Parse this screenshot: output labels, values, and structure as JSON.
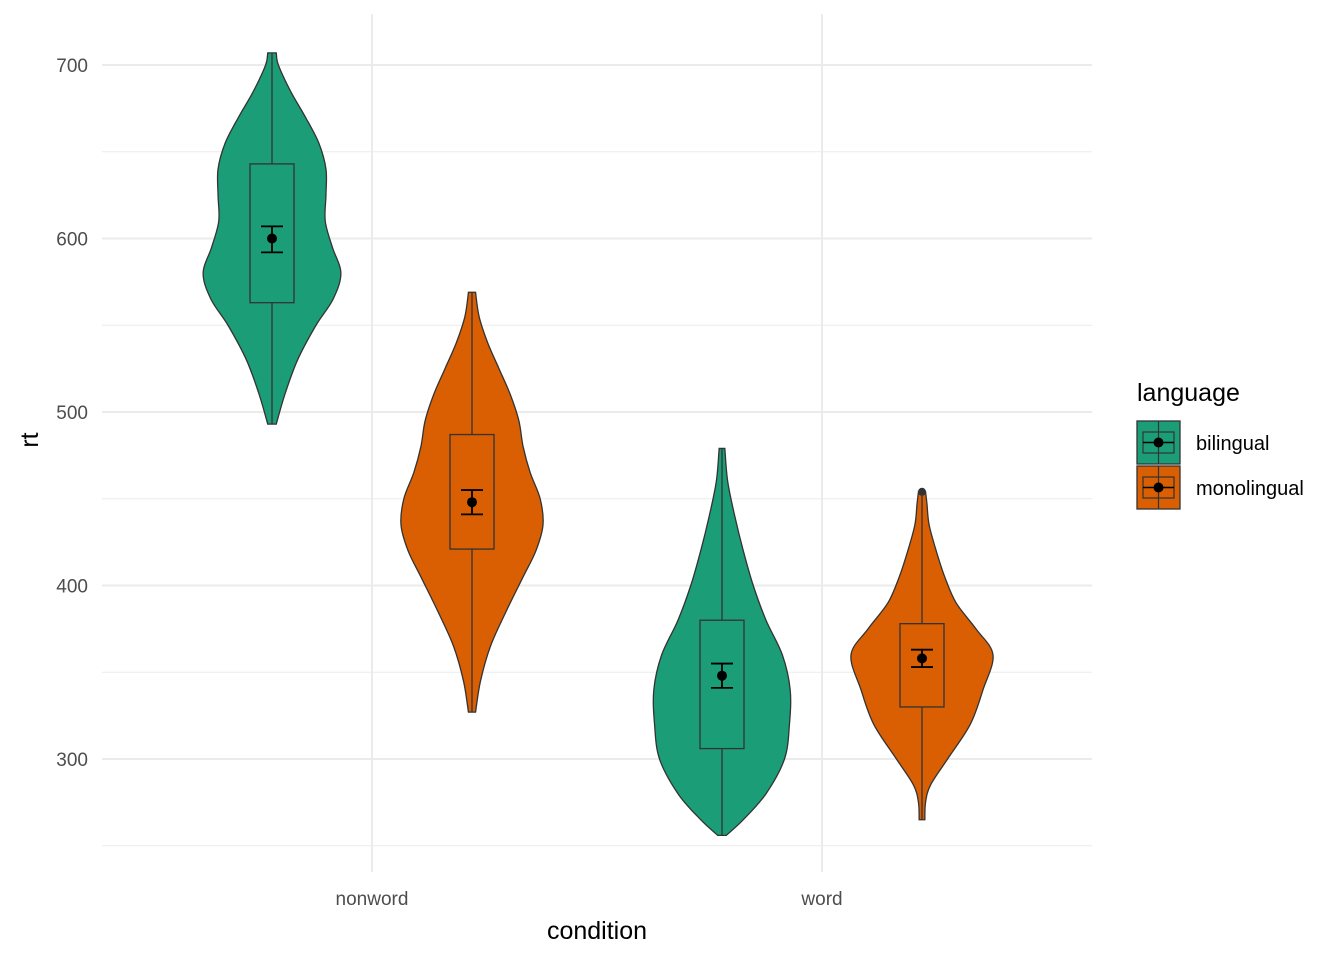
{
  "chart_data": {
    "type": "violin",
    "title": "",
    "xlabel": "condition",
    "ylabel": "rt",
    "ylim": [
      245,
      715
    ],
    "yticks": [
      300,
      400,
      500,
      600,
      700
    ],
    "categories": [
      "nonword",
      "word"
    ],
    "grid": true,
    "legend": {
      "title": "language",
      "position": "right",
      "entries": [
        "bilingual",
        "monolingual"
      ]
    },
    "colors": {
      "bilingual": "#1b9e77",
      "monolingual": "#d95f02",
      "outline": "#333333",
      "grid": "#ebebeb"
    },
    "groups": [
      {
        "condition": "nonword",
        "language": "bilingual",
        "min": 493,
        "max": 707,
        "q1": 563,
        "median": 600,
        "q3": 643,
        "mean": 600,
        "ci_low": 592,
        "ci_high": 607,
        "density": [
          [
            493,
            0.06
          ],
          [
            510,
            0.18
          ],
          [
            530,
            0.36
          ],
          [
            550,
            0.62
          ],
          [
            565,
            0.86
          ],
          [
            580,
            0.97
          ],
          [
            595,
            0.85
          ],
          [
            610,
            0.75
          ],
          [
            625,
            0.76
          ],
          [
            640,
            0.76
          ],
          [
            655,
            0.66
          ],
          [
            670,
            0.47
          ],
          [
            685,
            0.26
          ],
          [
            700,
            0.09
          ],
          [
            707,
            0.06
          ]
        ]
      },
      {
        "condition": "nonword",
        "language": "monolingual",
        "min": 327,
        "max": 569,
        "q1": 421,
        "median": 448,
        "q3": 487,
        "mean": 448,
        "ci_low": 441,
        "ci_high": 455,
        "density": [
          [
            327,
            0.05
          ],
          [
            345,
            0.12
          ],
          [
            365,
            0.26
          ],
          [
            385,
            0.48
          ],
          [
            405,
            0.72
          ],
          [
            420,
            0.9
          ],
          [
            435,
            1.0
          ],
          [
            450,
            0.96
          ],
          [
            465,
            0.82
          ],
          [
            480,
            0.72
          ],
          [
            495,
            0.66
          ],
          [
            510,
            0.54
          ],
          [
            525,
            0.38
          ],
          [
            540,
            0.22
          ],
          [
            555,
            0.1
          ],
          [
            569,
            0.05
          ]
        ]
      },
      {
        "condition": "word",
        "language": "bilingual",
        "min": 256,
        "max": 479,
        "q1": 306,
        "median": 348,
        "q3": 380,
        "mean": 348,
        "ci_low": 341,
        "ci_high": 355,
        "density": [
          [
            256,
            0.06
          ],
          [
            265,
            0.3
          ],
          [
            280,
            0.62
          ],
          [
            300,
            0.88
          ],
          [
            320,
            0.95
          ],
          [
            340,
            0.96
          ],
          [
            360,
            0.85
          ],
          [
            380,
            0.62
          ],
          [
            400,
            0.44
          ],
          [
            420,
            0.3
          ],
          [
            440,
            0.18
          ],
          [
            460,
            0.08
          ],
          [
            479,
            0.04
          ]
        ]
      },
      {
        "condition": "word",
        "language": "monolingual",
        "min": 265,
        "max": 454,
        "q1": 330,
        "median": 358,
        "q3": 378,
        "mean": 358,
        "ci_low": 353,
        "ci_high": 363,
        "density": [
          [
            265,
            0.04
          ],
          [
            275,
            0.05
          ],
          [
            285,
            0.12
          ],
          [
            300,
            0.36
          ],
          [
            320,
            0.68
          ],
          [
            340,
            0.86
          ],
          [
            360,
            1.0
          ],
          [
            375,
            0.76
          ],
          [
            390,
            0.48
          ],
          [
            405,
            0.32
          ],
          [
            420,
            0.2
          ],
          [
            435,
            0.1
          ],
          [
            447,
            0.07
          ],
          [
            454,
            0.05
          ]
        ]
      }
    ]
  }
}
